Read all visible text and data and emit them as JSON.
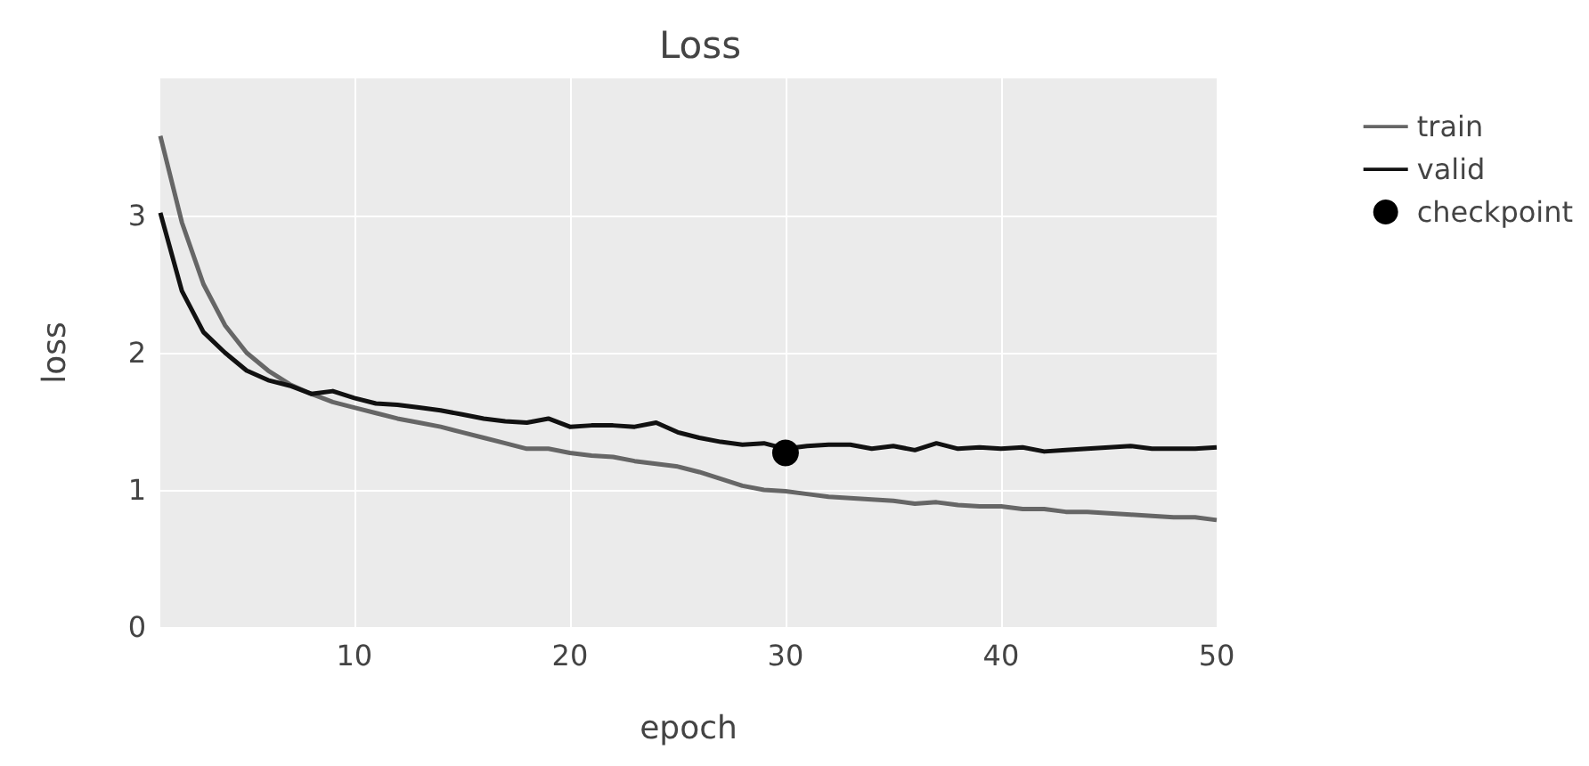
{
  "chart_data": {
    "type": "line",
    "title": "Loss",
    "xlabel": "epoch",
    "ylabel": "loss",
    "x": [
      1,
      2,
      3,
      4,
      5,
      6,
      7,
      8,
      9,
      10,
      11,
      12,
      13,
      14,
      15,
      16,
      17,
      18,
      19,
      20,
      21,
      22,
      23,
      24,
      25,
      26,
      27,
      28,
      29,
      30,
      31,
      32,
      33,
      34,
      35,
      36,
      37,
      38,
      39,
      40,
      41,
      42,
      43,
      44,
      45,
      46,
      47,
      48,
      49,
      50
    ],
    "series": [
      {
        "name": "train",
        "color": "#666666",
        "values": [
          3.58,
          2.95,
          2.5,
          2.2,
          2.0,
          1.87,
          1.77,
          1.7,
          1.64,
          1.6,
          1.56,
          1.52,
          1.49,
          1.46,
          1.42,
          1.38,
          1.34,
          1.3,
          1.3,
          1.27,
          1.25,
          1.24,
          1.21,
          1.19,
          1.17,
          1.13,
          1.08,
          1.03,
          1.0,
          0.99,
          0.97,
          0.95,
          0.94,
          0.93,
          0.92,
          0.9,
          0.91,
          0.89,
          0.88,
          0.88,
          0.86,
          0.86,
          0.84,
          0.84,
          0.83,
          0.82,
          0.81,
          0.8,
          0.8,
          0.78
        ]
      },
      {
        "name": "valid",
        "color": "#111111",
        "values": [
          3.02,
          2.45,
          2.15,
          2.0,
          1.87,
          1.8,
          1.76,
          1.7,
          1.72,
          1.67,
          1.63,
          1.62,
          1.6,
          1.58,
          1.55,
          1.52,
          1.5,
          1.49,
          1.52,
          1.46,
          1.47,
          1.47,
          1.46,
          1.49,
          1.42,
          1.38,
          1.35,
          1.33,
          1.34,
          1.3,
          1.32,
          1.33,
          1.33,
          1.3,
          1.32,
          1.29,
          1.34,
          1.3,
          1.31,
          1.3,
          1.31,
          1.28,
          1.29,
          1.3,
          1.31,
          1.32,
          1.3,
          1.3,
          1.3,
          1.31
        ]
      },
      {
        "name": "checkpoint",
        "type": "scatter",
        "marker": "circle",
        "color": "#000000",
        "x": [
          30
        ],
        "values": [
          1.27
        ]
      }
    ],
    "xlim": [
      1,
      50
    ],
    "xticks": [
      10,
      20,
      30,
      40,
      50
    ],
    "ylim": [
      0,
      4
    ],
    "yticks": [
      0,
      1,
      2,
      3
    ],
    "grid": true,
    "legend": "top right",
    "marker": "none",
    "line_style": "solid"
  }
}
